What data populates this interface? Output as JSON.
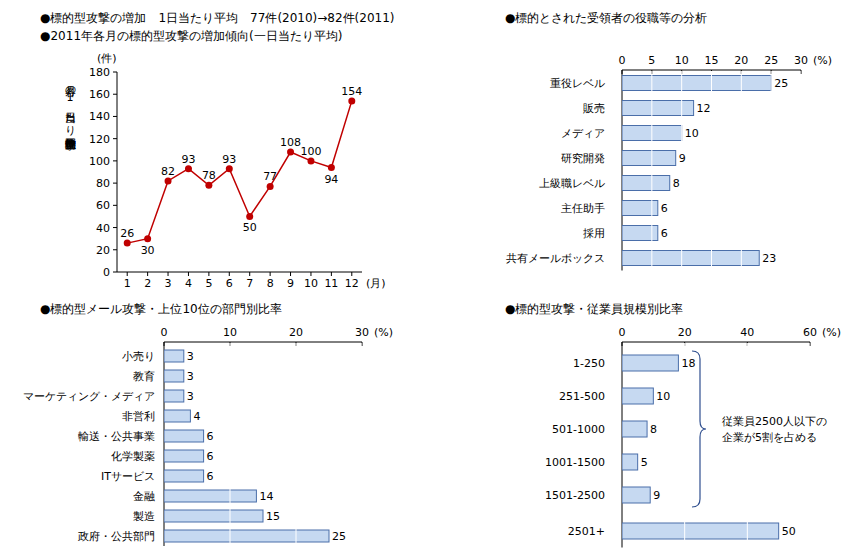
{
  "chart_data": [
    {
      "type": "line",
      "title": "●標的型攻撃の増加　1日当たり平均　77件(2010)→82件(2011)",
      "subtitle": "●2011年各月の標的型攻撃の増加傾向(一日当たり平均)",
      "ylabel": "各月の1日当たり平均標的型攻撃件数",
      "yunit": "(件)",
      "xlabel": "(月)",
      "categories": [
        "1",
        "2",
        "3",
        "4",
        "5",
        "6",
        "7",
        "8",
        "9",
        "10",
        "11",
        "12"
      ],
      "values": [
        26,
        30,
        82,
        93,
        78,
        93,
        50,
        77,
        108,
        100,
        94,
        154
      ],
      "color": "#c00000",
      "marker": "circle",
      "ylim": [
        0,
        180
      ],
      "yticks": [
        0,
        20,
        40,
        60,
        80,
        100,
        120,
        140,
        160,
        180
      ],
      "data_labels": true,
      "grid": false
    },
    {
      "type": "bar",
      "orientation": "horizontal",
      "title": "●標的とされた受領者の役職等の分析",
      "xunit": "(%)",
      "categories": [
        "重役レベル",
        "販売",
        "メディア",
        "研究開発",
        "上級職レベル",
        "主任助手",
        "採用",
        "共有メールボックス"
      ],
      "values": [
        25,
        12,
        10,
        9,
        8,
        6,
        6,
        23
      ],
      "color": "#c6d9f1",
      "xlim": [
        0,
        30
      ],
      "xticks": [
        0,
        5,
        10,
        15,
        20,
        25,
        30
      ],
      "data_labels": true,
      "grid": true
    },
    {
      "type": "bar",
      "orientation": "horizontal",
      "title": "●標的型メール攻撃・上位10位の部門別比率",
      "xunit": "(%)",
      "categories": [
        "小売り",
        "教育",
        "マーケティング・メディア",
        "非営利",
        "輸送・公共事業",
        "化学製薬",
        "ITサービス",
        "金融",
        "製造",
        "政府・公共部門"
      ],
      "values": [
        3,
        3,
        3,
        4,
        6,
        6,
        6,
        14,
        15,
        25
      ],
      "color": "#c6d9f1",
      "xlim": [
        0,
        30
      ],
      "xticks": [
        0,
        10,
        20,
        30
      ],
      "data_labels": true,
      "grid": true
    },
    {
      "type": "bar",
      "orientation": "horizontal",
      "title": "●標的型攻撃・従業員規模別比率",
      "xunit": "(%)",
      "categories": [
        "1-250",
        "251-500",
        "501-1000",
        "1001-1500",
        "1501-2500",
        "2501+"
      ],
      "values": [
        18,
        10,
        8,
        5,
        9,
        50
      ],
      "color": "#c6d9f1",
      "xlim": [
        0,
        60
      ],
      "xticks": [
        0,
        20,
        40,
        60
      ],
      "data_labels": true,
      "grid": true,
      "annotations": [
        "従業員2500人以下の",
        "企業が5割を占める"
      ]
    }
  ]
}
